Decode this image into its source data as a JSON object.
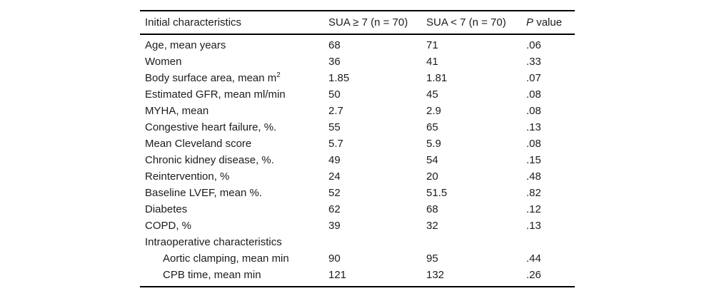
{
  "table": {
    "header": {
      "col1": "Initial characteristics",
      "col2": "SUA ≥ 7 (n = 70)",
      "col3": "SUA < 7 (n = 70)",
      "p_italic": "P",
      "p_rest": "value"
    },
    "rows": [
      {
        "label": "Age, mean years",
        "v1": "68",
        "v2": "71",
        "p": ".06"
      },
      {
        "label": "Women",
        "v1": "36",
        "v2": "41",
        "p": ".33"
      },
      {
        "label": "Body surface area, mean m",
        "sup": "2",
        "v1": "1.85",
        "v2": "1.81",
        "p": ".07"
      },
      {
        "label": "Estimated GFR, mean ml/min",
        "v1": "50",
        "v2": "45",
        "p": ".08"
      },
      {
        "label": "MYHA, mean",
        "v1": "2.7",
        "v2": "2.9",
        "p": ".08"
      },
      {
        "label": "Congestive heart failure, %.",
        "v1": "55",
        "v2": "65",
        "p": ".13"
      },
      {
        "label": "Mean Cleveland score",
        "v1": "5.7",
        "v2": "5.9",
        "p": ".08"
      },
      {
        "label": "Chronic kidney disease, %.",
        "v1": "49",
        "v2": "54",
        "p": ".15"
      },
      {
        "label": "Reintervention, %",
        "v1": "24",
        "v2": "20",
        "p": ".48"
      },
      {
        "label": "Baseline LVEF, mean %.",
        "v1": "52",
        "v2": "51.5",
        "p": ".82"
      },
      {
        "label": "Diabetes",
        "v1": "62",
        "v2": "68",
        "p": ".12"
      },
      {
        "label": "COPD, %",
        "v1": "39",
        "v2": "32",
        "p": ".13"
      },
      {
        "label": "Intraoperative characteristics",
        "section": true,
        "v1": "",
        "v2": "",
        "p": ""
      },
      {
        "label": "Aortic clamping, mean min",
        "indent": true,
        "v1": "90",
        "v2": "95",
        "p": ".44"
      },
      {
        "label": "CPB time, mean min",
        "indent": true,
        "v1": "121",
        "v2": "132",
        "p": ".26"
      }
    ]
  },
  "colors": {
    "text": "#1c1c1c",
    "rule": "#000000",
    "background": "#ffffff"
  }
}
